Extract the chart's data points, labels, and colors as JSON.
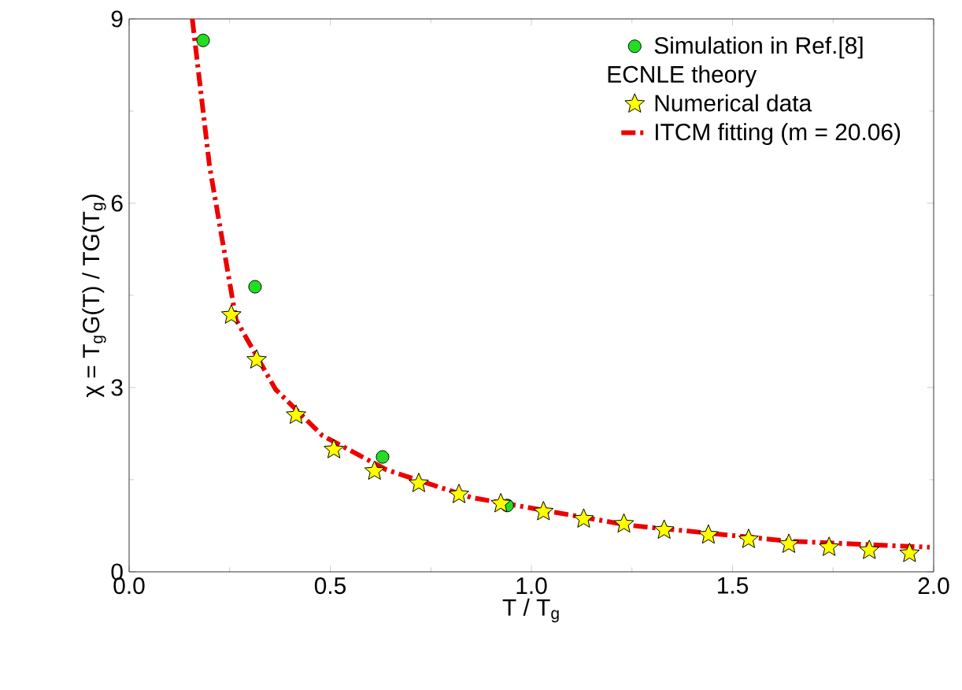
{
  "chart_data": {
    "type": "scatter",
    "xlabel": "T / T$_{g}$",
    "ylabel": "χ = T$_{g}$G(T) / TG(T$_{g}$)",
    "legend_title": "ECNLE theory",
    "xlim": [
      0,
      2
    ],
    "ylim": [
      0,
      9
    ],
    "xticks": [
      {
        "value": 0,
        "label": "0.0"
      },
      {
        "value": 0.5,
        "label": "0.5"
      },
      {
        "value": 1,
        "label": "1.0"
      },
      {
        "value": 1.5,
        "label": "1.5"
      },
      {
        "value": 2,
        "label": "2.0"
      }
    ],
    "yticks": [
      0,
      3,
      6,
      9
    ],
    "legend": "top right",
    "grid": false,
    "series": [
      {
        "name": "Simulation in Ref.[8]",
        "marker": "circle",
        "color": "#22dd22",
        "x": [
          0.184,
          0.313,
          0.63,
          0.94
        ],
        "values": [
          8.65,
          4.64,
          1.87,
          1.08
        ]
      },
      {
        "name": "Numerical data",
        "marker": "star",
        "color": "#ffff00",
        "x": [
          0.254,
          0.317,
          0.415,
          0.509,
          0.61,
          0.72,
          0.82,
          0.924,
          1.03,
          1.13,
          1.23,
          1.33,
          1.44,
          1.54,
          1.64,
          1.74,
          1.84,
          1.94
        ],
        "values": [
          4.18,
          3.45,
          2.55,
          1.99,
          1.64,
          1.44,
          1.26,
          1.11,
          0.98,
          0.86,
          0.78,
          0.68,
          0.6,
          0.53,
          0.45,
          0.4,
          0.35,
          0.3
        ]
      },
      {
        "name": "ITCM fitting (m = 20.06)",
        "type": "line",
        "marker": "none",
        "line_style": "dashdot",
        "color": "#ee0000",
        "x": [
          0.157,
          0.2,
          0.266,
          0.364,
          0.48,
          0.64,
          0.85,
          1.24,
          1.64,
          1.99
        ],
        "values": [
          9,
          6.6,
          4.1,
          2.97,
          2.22,
          1.66,
          1.21,
          0.76,
          0.5,
          0.4
        ]
      }
    ]
  }
}
